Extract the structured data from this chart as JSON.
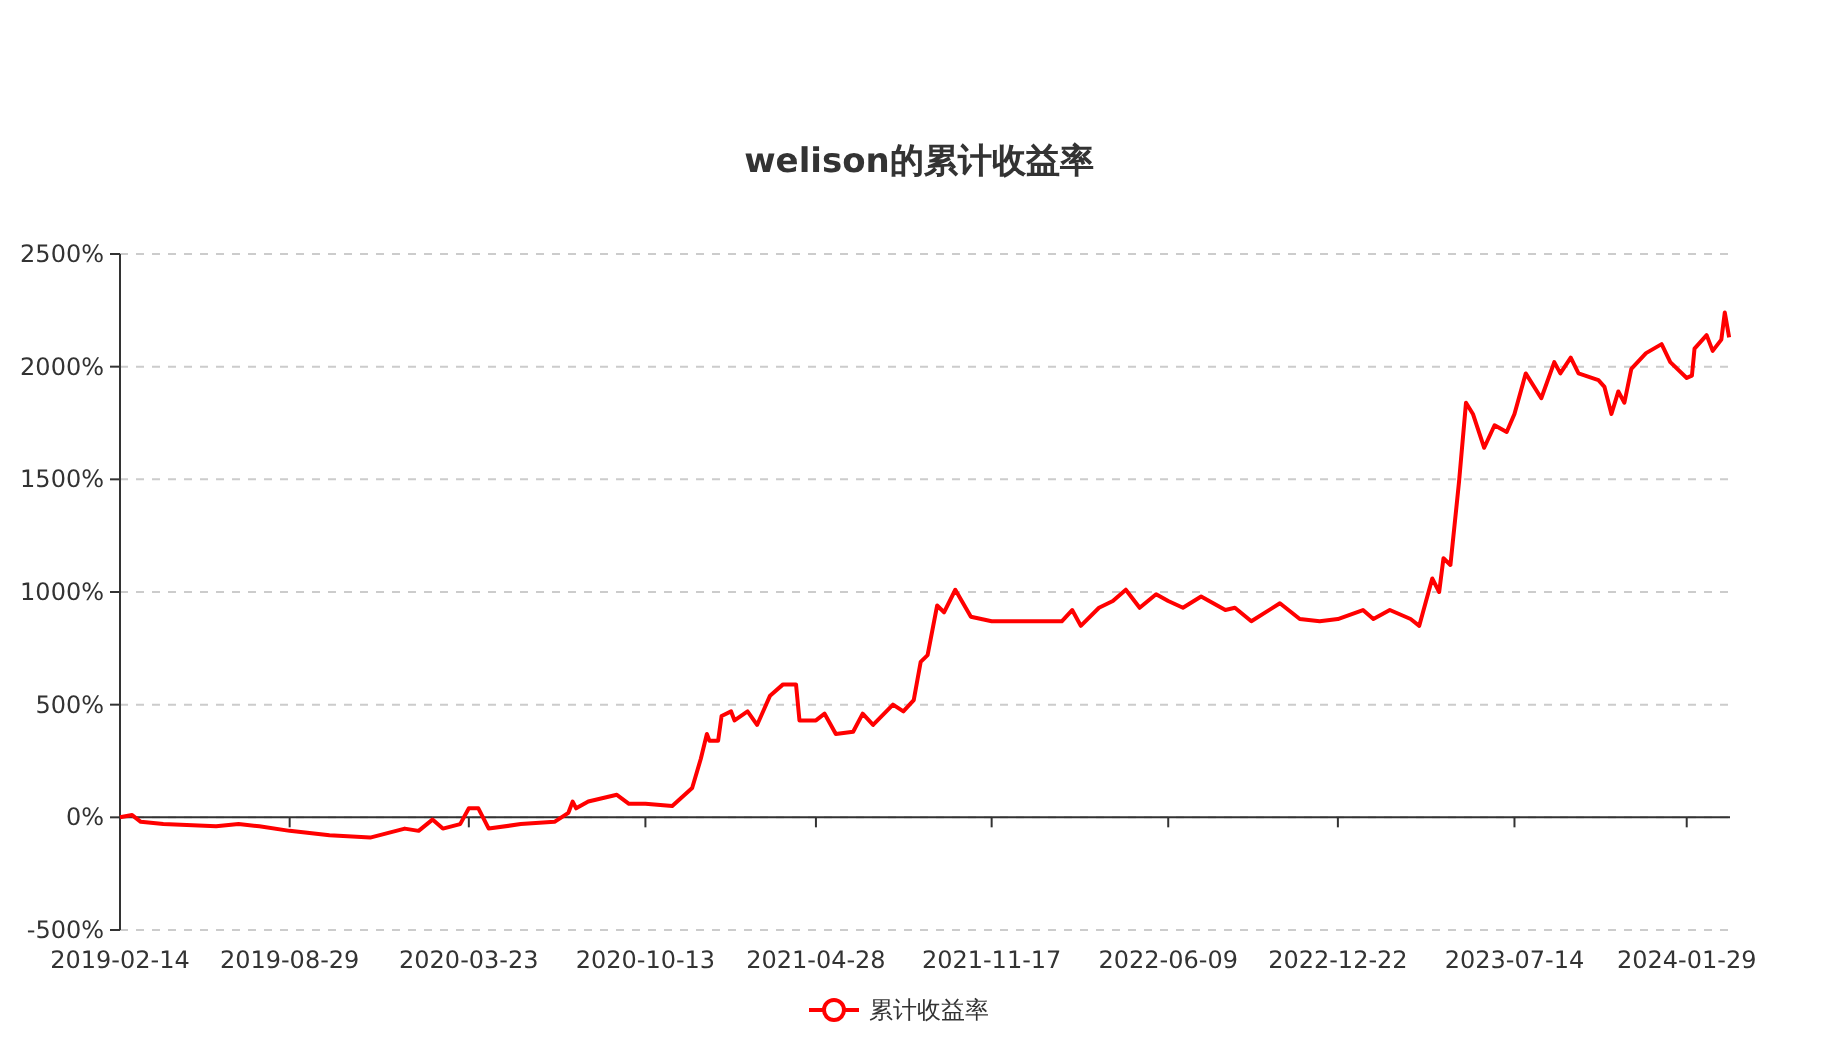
{
  "chart_data": {
    "type": "line",
    "title": "welison的累计收益率",
    "x": [
      "2019-02-14",
      "2019-02-28",
      "2019-03-10",
      "2019-04-05",
      "2019-06-05",
      "2019-07-01",
      "2019-07-25",
      "2019-08-29",
      "2019-10-14",
      "2019-11-30",
      "2020-01-09",
      "2020-01-25",
      "2020-02-10",
      "2020-02-22",
      "2020-03-13",
      "2020-03-23",
      "2020-04-03",
      "2020-04-15",
      "2020-05-22",
      "2020-06-30",
      "2020-07-16",
      "2020-07-21",
      "2020-07-25",
      "2020-08-08",
      "2020-09-10",
      "2020-09-24",
      "2020-10-13",
      "2020-11-13",
      "2020-12-06",
      "2020-12-16",
      "2020-12-23",
      "2020-12-26",
      "2021-01-05",
      "2021-01-09",
      "2021-01-20",
      "2021-01-24",
      "2021-02-08",
      "2021-02-19",
      "2021-03-06",
      "2021-03-21",
      "2021-04-05",
      "2021-04-09",
      "2021-04-28",
      "2021-05-08",
      "2021-05-21",
      "2021-06-10",
      "2021-06-21",
      "2021-07-03",
      "2021-07-26",
      "2021-08-07",
      "2021-08-19",
      "2021-08-27",
      "2021-09-04",
      "2021-09-15",
      "2021-09-23",
      "2021-10-06",
      "2021-10-24",
      "2021-11-17",
      "2021-12-14",
      "2022-02-06",
      "2022-02-18",
      "2022-02-28",
      "2022-03-21",
      "2022-04-06",
      "2022-04-21",
      "2022-05-07",
      "2022-05-26",
      "2022-06-09",
      "2022-06-26",
      "2022-07-17",
      "2022-08-14",
      "2022-08-25",
      "2022-09-13",
      "2022-10-16",
      "2022-11-08",
      "2022-12-01",
      "2022-12-22",
      "2023-01-20",
      "2023-02-01",
      "2023-02-20",
      "2023-03-16",
      "2023-03-26",
      "2023-04-10",
      "2023-04-18",
      "2023-04-23",
      "2023-05-01",
      "2023-05-11",
      "2023-05-19",
      "2023-05-27",
      "2023-06-09",
      "2023-06-21",
      "2023-07-05",
      "2023-07-14",
      "2023-07-27",
      "2023-08-14",
      "2023-08-29",
      "2023-09-05",
      "2023-09-17",
      "2023-09-26",
      "2023-10-19",
      "2023-10-26",
      "2023-11-03",
      "2023-11-11",
      "2023-11-18",
      "2023-11-26",
      "2023-12-13",
      "2023-12-31",
      "2024-01-10",
      "2024-01-29",
      "2024-02-04",
      "2024-02-07",
      "2024-02-21",
      "2024-02-28",
      "2024-03-09",
      "2024-03-13",
      "2024-03-18"
    ],
    "series": [
      {
        "name": "累计收益率",
        "color": "#ff0000",
        "values": [
          0,
          10,
          -20,
          -30,
          -40,
          -30,
          -40,
          -60,
          -80,
          -90,
          -50,
          -60,
          -10,
          -50,
          -30,
          40,
          40,
          -50,
          -30,
          -20,
          20,
          70,
          40,
          70,
          100,
          60,
          60,
          50,
          130,
          260,
          370,
          340,
          340,
          450,
          470,
          430,
          470,
          410,
          540,
          590,
          590,
          430,
          430,
          460,
          370,
          380,
          460,
          410,
          500,
          470,
          520,
          690,
          720,
          940,
          910,
          1010,
          890,
          870,
          870,
          870,
          920,
          850,
          930,
          960,
          1010,
          930,
          990,
          960,
          930,
          980,
          920,
          930,
          870,
          950,
          880,
          870,
          880,
          920,
          880,
          920,
          880,
          850,
          1060,
          1000,
          1150,
          1120,
          1490,
          1840,
          1790,
          1640,
          1740,
          1710,
          1790,
          1970,
          1860,
          2020,
          1970,
          2040,
          1970,
          1940,
          1910,
          1790,
          1890,
          1840,
          1990,
          2060,
          2100,
          2020,
          1950,
          1960,
          2080,
          2140,
          2070,
          2120,
          2240,
          2130
        ]
      }
    ],
    "xlim": [
      "2019-02-14",
      "2024-03-19"
    ],
    "xticks": [
      "2019-02-14",
      "2019-08-29",
      "2020-03-23",
      "2020-10-13",
      "2021-04-28",
      "2021-11-17",
      "2022-06-09",
      "2022-12-22",
      "2023-07-14",
      "2024-01-29"
    ],
    "ylim": [
      -500,
      2500
    ],
    "yticks": [
      {
        "value": -500,
        "label": "-500%"
      },
      {
        "value": 0,
        "label": "0%"
      },
      {
        "value": 500,
        "label": "500%"
      },
      {
        "value": 1000,
        "label": "1000%"
      },
      {
        "value": 1500,
        "label": "1500%"
      },
      {
        "value": 2000,
        "label": "2000%"
      },
      {
        "value": 2500,
        "label": "2500%"
      }
    ],
    "grid": "y",
    "legend": "bottom",
    "line_style": "solid"
  }
}
